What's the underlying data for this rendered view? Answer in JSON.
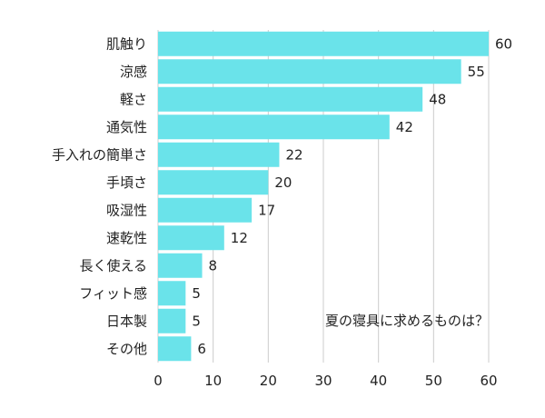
{
  "chart_data": {
    "type": "bar",
    "orientation": "horizontal",
    "categories": [
      "肌触り",
      "涼感",
      "軽さ",
      "通気性",
      "手入れの簡単さ",
      "手頃さ",
      "吸湿性",
      "速乾性",
      "長く使える",
      "フィット感",
      "日本製",
      "その他"
    ],
    "values": [
      60,
      55,
      48,
      42,
      22,
      20,
      17,
      12,
      8,
      5,
      5,
      6
    ],
    "title": "",
    "xlabel": "",
    "ylabel": "",
    "xlim": [
      0,
      60
    ],
    "xticks": [
      0,
      10,
      20,
      30,
      40,
      50,
      60
    ],
    "grid": true,
    "bar_color": "#6ae3ea",
    "grid_color": "#cccccc",
    "annotation": "夏の寝具に求めるものは？"
  }
}
